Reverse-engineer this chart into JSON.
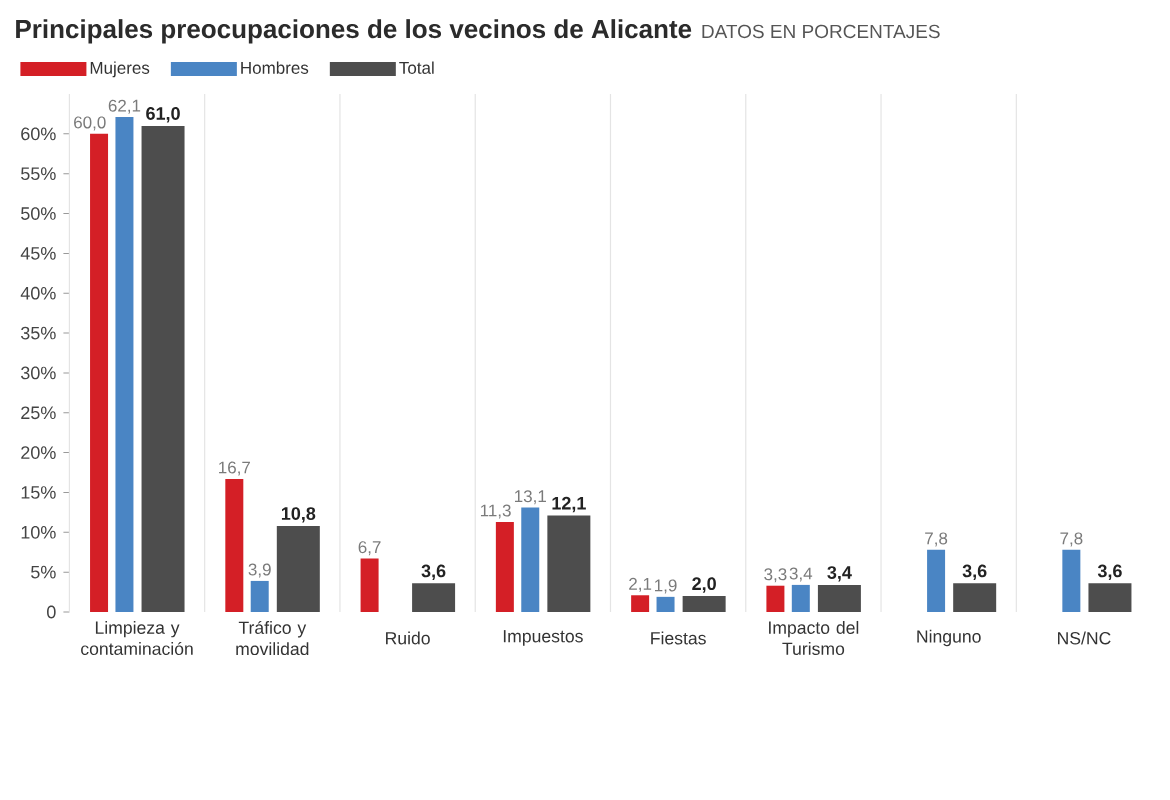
{
  "chart_data": {
    "type": "bar",
    "title": "Principales preocupaciones de los vecinos de Alicante",
    "subtitle": "DATOS EN PORCENTAJES",
    "categories": [
      "Limpieza y contaminación",
      "Tráfico y movilidad",
      "Ruido",
      "Impuestos",
      "Fiestas",
      "Impacto del Turismo",
      "Ninguno",
      "NS/NC"
    ],
    "series": [
      {
        "name": "Mujeres",
        "color": "#d41f26",
        "values": [
          60.0,
          16.7,
          6.7,
          11.3,
          2.1,
          3.3,
          null,
          null
        ],
        "value_labels": [
          "60,0",
          "16,7",
          "6,7",
          "11,3",
          "2,1",
          "3,3",
          null,
          null
        ]
      },
      {
        "name": "Hombres",
        "color": "#4a85c4",
        "values": [
          62.1,
          3.9,
          null,
          13.1,
          1.9,
          3.4,
          7.8,
          7.8
        ],
        "value_labels": [
          "62,1",
          "3,9",
          null,
          "13,1",
          "1,9",
          "3,4",
          "7,8",
          "7,8"
        ]
      },
      {
        "name": "Total",
        "color": "#4d4d4d",
        "values": [
          61.0,
          10.8,
          3.6,
          12.1,
          2.0,
          3.4,
          3.6,
          3.6
        ],
        "value_labels": [
          "61,0",
          "10,8",
          "3,6",
          "12,1",
          "2,0",
          "3,4",
          "3,6",
          "3,6"
        ]
      }
    ],
    "ylim": [
      0,
      65
    ],
    "yticks": [
      0,
      {
        "value": 5,
        "label": "5%"
      },
      {
        "value": 10,
        "label": "10%"
      },
      {
        "value": 15,
        "label": "15%"
      },
      {
        "value": 20,
        "label": "20%"
      },
      {
        "value": 25,
        "label": "25%"
      },
      {
        "value": 30,
        "label": "30%"
      },
      {
        "value": 35,
        "label": "35%"
      },
      {
        "value": 40,
        "label": "40%"
      },
      {
        "value": 45,
        "label": "45%"
      },
      {
        "value": 50,
        "label": "50%"
      },
      {
        "value": 55,
        "label": "55%"
      },
      {
        "value": 60,
        "label": "60%"
      }
    ],
    "grid": "x",
    "legend": "top left"
  }
}
